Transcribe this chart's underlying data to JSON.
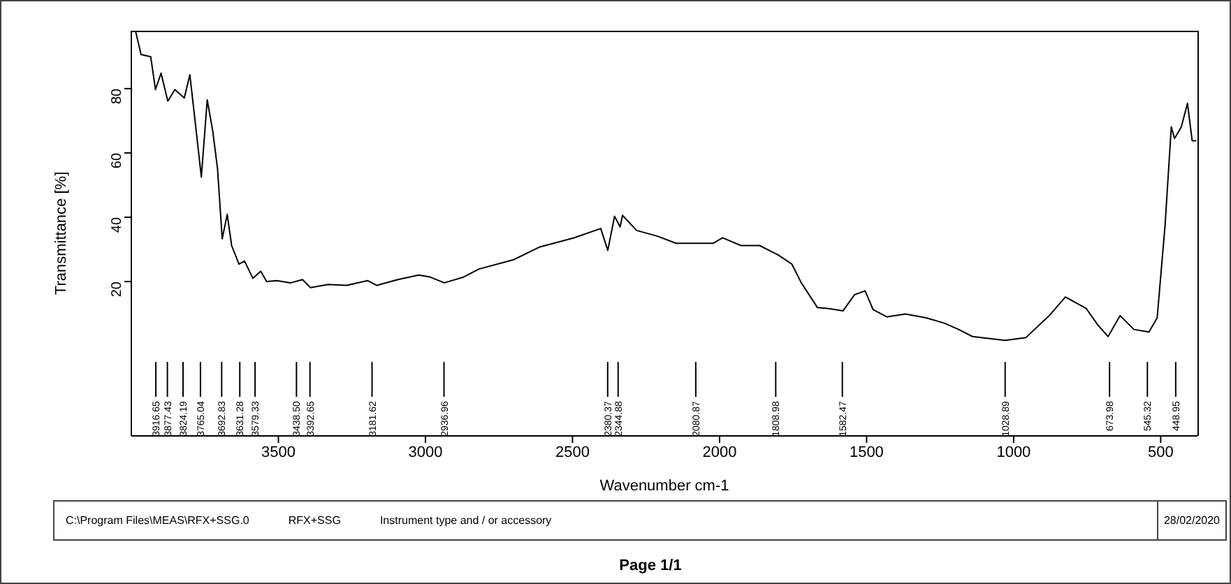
{
  "chart_data": {
    "type": "line",
    "xlabel": "Wavenumber cm-1",
    "ylabel": "Transmittance [%]",
    "xlim": [
      4000,
      375
    ],
    "xticks": [
      3500,
      3000,
      2500,
      2000,
      1500,
      1000,
      500
    ],
    "ylim": [
      -28,
      98
    ],
    "yticks": [
      20,
      40,
      60,
      80
    ],
    "x": [
      3986,
      3967,
      3934,
      3918,
      3899,
      3876,
      3852,
      3820,
      3801,
      3781,
      3762,
      3742,
      3723,
      3707,
      3691,
      3674,
      3659,
      3634,
      3615,
      3587,
      3560,
      3540,
      3505,
      3458,
      3418,
      3391,
      3331,
      3268,
      3197,
      3165,
      3094,
      3023,
      2984,
      2936,
      2873,
      2818,
      2700,
      2613,
      2495,
      2404,
      2380,
      2357,
      2338,
      2330,
      2282,
      2211,
      2148,
      2022,
      1990,
      1927,
      1864,
      1801,
      1754,
      1722,
      1667,
      1628,
      1580,
      1541,
      1505,
      1478,
      1431,
      1368,
      1297,
      1234,
      1187,
      1140,
      1029,
      958,
      879,
      824,
      753,
      714,
      679,
      638,
      591,
      540,
      512,
      485,
      464,
      453,
      430,
      409,
      393,
      379
    ],
    "series": [
      {
        "color": "#000000",
        "values": [
          98,
          90.6,
          89.9,
          79.7,
          84.8,
          76.1,
          79.7,
          77.1,
          84.3,
          68.1,
          52.5,
          76.5,
          66.7,
          55.1,
          33.3,
          40.9,
          31.2,
          25.4,
          26.4,
          21,
          23.2,
          20,
          20.3,
          19.6,
          20.6,
          18.1,
          19.1,
          18.8,
          20.3,
          18.8,
          20.6,
          22,
          21.4,
          19.6,
          21.3,
          23.9,
          26.8,
          30.7,
          33.6,
          36.5,
          29.7,
          40.3,
          37,
          40.6,
          35.9,
          34.1,
          31.9,
          31.9,
          33.6,
          31.2,
          31.2,
          28.3,
          25.4,
          19.6,
          11.9,
          11.6,
          10.9,
          15.9,
          17.1,
          11.3,
          9,
          9.9,
          8.7,
          7,
          5.1,
          2.9,
          1.7,
          2.6,
          9.4,
          15.2,
          11.6,
          6.5,
          2.9,
          9.4,
          5.1,
          4.3,
          8.7,
          37.7,
          68.1,
          64.5,
          68.1,
          75.4,
          63.8,
          63.8
        ]
      }
    ],
    "ref_lines": [
      {
        "axis": "x",
        "value": 3916.65,
        "label": "3916.65"
      },
      {
        "axis": "x",
        "value": 3877.43,
        "label": "3877.43"
      },
      {
        "axis": "x",
        "value": 3824.19,
        "label": "3824.19"
      },
      {
        "axis": "x",
        "value": 3765.04,
        "label": "3765.04"
      },
      {
        "axis": "x",
        "value": 3692.83,
        "label": "3692.83"
      },
      {
        "axis": "x",
        "value": 3631.28,
        "label": "3631.28"
      },
      {
        "axis": "x",
        "value": 3579.33,
        "label": "3579.33"
      },
      {
        "axis": "x",
        "value": 3438.5,
        "label": "3438.50"
      },
      {
        "axis": "x",
        "value": 3392.65,
        "label": "3392.65"
      },
      {
        "axis": "x",
        "value": 3181.62,
        "label": "3181.62"
      },
      {
        "axis": "x",
        "value": 2936.96,
        "label": "2936.96"
      },
      {
        "axis": "x",
        "value": 2380.37,
        "label": "2380.37"
      },
      {
        "axis": "x",
        "value": 2344.88,
        "label": "2344.88"
      },
      {
        "axis": "x",
        "value": 2080.87,
        "label": "2080.87"
      },
      {
        "axis": "x",
        "value": 1808.98,
        "label": "1808.98"
      },
      {
        "axis": "x",
        "value": 1582.47,
        "label": "1582.47"
      },
      {
        "axis": "x",
        "value": 1028.89,
        "label": "1028.89"
      },
      {
        "axis": "x",
        "value": 673.98,
        "label": "673.98"
      },
      {
        "axis": "x",
        "value": 545.32,
        "label": "545.32"
      },
      {
        "axis": "x",
        "value": 448.95,
        "label": "448.95"
      }
    ],
    "annotations": [
      "C:\\Program Files\\MEAS\\RFX+SSG.0",
      "RFX+SSG",
      "Instrument type and / or accessory",
      "28/02/2020",
      "Page 1/1"
    ]
  }
}
